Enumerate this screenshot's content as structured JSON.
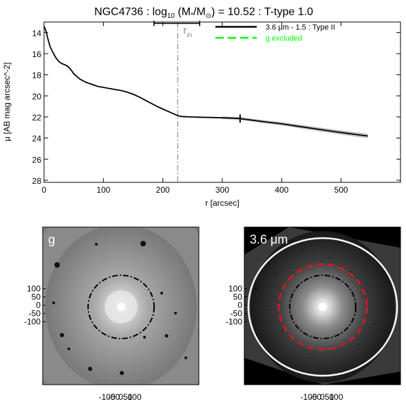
{
  "figure": {
    "title_prefix": "NGC4736 : log",
    "title_sub": "10",
    "title_mid": " (M",
    "title_star": "*",
    "title_slash": "/M",
    "title_sun": "⊙",
    "title_suffix": ") = 10.52 : T-type 1.0"
  },
  "chart_data": [
    {
      "type": "line",
      "title": "NGC4736 : log10 (M*/M⊙) = 10.52 : T-type 1.0",
      "xlabel": "r [arcsec]",
      "ylabel": "μ [AB mag arcsec^-2]",
      "xlim": [
        0,
        600
      ],
      "ylim": [
        28.2,
        13.0
      ],
      "y_inverted": true,
      "x_ticks": [
        0,
        100,
        200,
        300,
        400,
        500
      ],
      "y_ticks": [
        14,
        16,
        18,
        20,
        22,
        24,
        26,
        28
      ],
      "legend": {
        "placement": "top-right",
        "entries": [
          "3.6 μm - 1.5 : Type II",
          "g excluded"
        ]
      },
      "annotations": {
        "r_in_label": "r",
        "r_in_sub": "in",
        "r_in": 225,
        "r_in_bar": [
          185,
          262
        ],
        "break_marker_r": 330
      },
      "series": [
        {
          "name": "3.6 μm - 1.5 : Type II",
          "color": "#000000",
          "x": [
            0,
            3,
            6,
            10,
            15,
            20,
            25,
            30,
            35,
            40,
            45,
            50,
            60,
            70,
            80,
            90,
            100,
            110,
            120,
            130,
            140,
            150,
            160,
            170,
            180,
            190,
            200,
            210,
            220,
            225,
            230,
            240,
            250,
            260,
            280,
            300,
            320,
            330,
            350,
            370,
            400,
            430,
            460,
            490,
            510,
            530,
            545
          ],
          "y": [
            13.4,
            13.8,
            14.5,
            15.3,
            15.9,
            16.4,
            16.75,
            16.95,
            17.05,
            17.2,
            17.5,
            17.9,
            18.4,
            18.7,
            18.9,
            19.1,
            19.2,
            19.3,
            19.4,
            19.5,
            19.65,
            19.85,
            20.1,
            20.4,
            20.7,
            21.0,
            21.25,
            21.5,
            21.75,
            21.88,
            21.95,
            21.98,
            22.0,
            22.02,
            22.05,
            22.08,
            22.12,
            22.15,
            22.3,
            22.45,
            22.65,
            22.9,
            23.15,
            23.4,
            23.55,
            23.7,
            23.8
          ]
        },
        {
          "name": "g excluded",
          "color": "#00ff00",
          "x": [],
          "y": []
        }
      ]
    },
    {
      "type": "image",
      "label": "g",
      "x_tick_labels": [
        "-100",
        "-50",
        "0",
        "50",
        "100"
      ],
      "y_tick_labels": [
        "100",
        "50",
        "0",
        "-50",
        "-100"
      ]
    },
    {
      "type": "image",
      "label": "3.6 μm",
      "x_tick_labels": [
        "-100",
        "-50",
        "0",
        "50",
        "100"
      ],
      "y_tick_labels": [
        "100",
        "50",
        "0",
        "-50",
        "-100"
      ]
    }
  ]
}
